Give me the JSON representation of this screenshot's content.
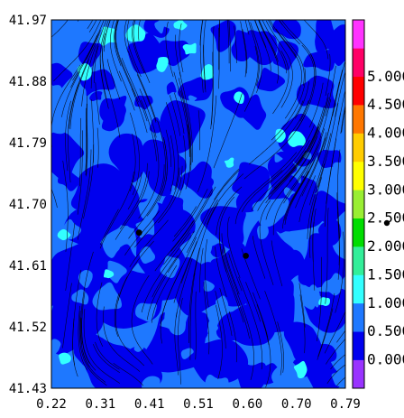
{
  "chart_data": {
    "type": "heatmap",
    "title": "",
    "xlabel": "",
    "ylabel": "",
    "xlim": [
      0.22,
      0.79
    ],
    "ylim": [
      41.43,
      41.97
    ],
    "x_ticks": [
      "0.22",
      "0.31",
      "0.41",
      "0.51",
      "0.60",
      "0.70",
      "0.79"
    ],
    "y_ticks": [
      "41.97",
      "41.88",
      "41.79",
      "41.70",
      "41.61",
      "41.52",
      "41.43"
    ],
    "colorbar": {
      "placement": "right",
      "range": [
        0.0,
        5.5
      ],
      "tick_labels": [
        "0.000",
        "0.500",
        "1.000",
        "1.500",
        "2.000",
        "2.500",
        "3.000",
        "3.500",
        "4.000",
        "4.500",
        "5.000"
      ],
      "levels": [
        {
          "from": -0.5,
          "to": 0.0,
          "color": "#9933ff"
        },
        {
          "from": 0.0,
          "to": 0.5,
          "color": "#0000ee"
        },
        {
          "from": 0.5,
          "to": 1.0,
          "color": "#1e78ff"
        },
        {
          "from": 1.0,
          "to": 1.5,
          "color": "#33ffff"
        },
        {
          "from": 1.5,
          "to": 2.0,
          "color": "#33ee99"
        },
        {
          "from": 2.0,
          "to": 2.5,
          "color": "#00dd00"
        },
        {
          "from": 2.5,
          "to": 3.0,
          "color": "#99ee33"
        },
        {
          "from": 3.0,
          "to": 3.5,
          "color": "#ffff00"
        },
        {
          "from": 3.5,
          "to": 4.0,
          "color": "#ffcc00"
        },
        {
          "from": 4.0,
          "to": 4.5,
          "color": "#ff7700"
        },
        {
          "from": 4.5,
          "to": 5.0,
          "color": "#ff0000"
        },
        {
          "from": 5.0,
          "to": 5.5,
          "color": "#ff0066"
        },
        {
          "from": 5.5,
          "to": 6.0,
          "color": "#ff33ff"
        }
      ]
    },
    "overlay": "streamlines",
    "markers": [
      {
        "x": 0.39,
        "y": 41.658
      },
      {
        "x": 0.597,
        "y": 41.624
      }
    ],
    "legend_marker_shown": true
  }
}
